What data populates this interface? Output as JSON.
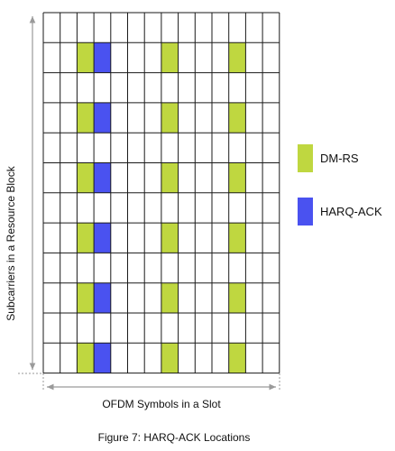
{
  "diagram": {
    "rows": 12,
    "cols": 14,
    "dmrs_cols": [
      2,
      7,
      11
    ],
    "harq_col": 3,
    "pattern_rows": [
      1,
      3,
      5,
      7,
      9,
      11
    ],
    "colors": {
      "dmrs": "#bfd740",
      "harq": "#4a52f0",
      "grid": "#1a1a1a",
      "axis": "#9a9a9a"
    }
  },
  "labels": {
    "y_axis": "Subcarriers in a Resource Block",
    "x_axis": "OFDM Symbols in a Slot",
    "caption": "Figure 7: HARQ-ACK Locations"
  },
  "legend": [
    {
      "key": "dmrs",
      "label": "DM-RS"
    },
    {
      "key": "harq",
      "label": "HARQ-ACK"
    }
  ]
}
